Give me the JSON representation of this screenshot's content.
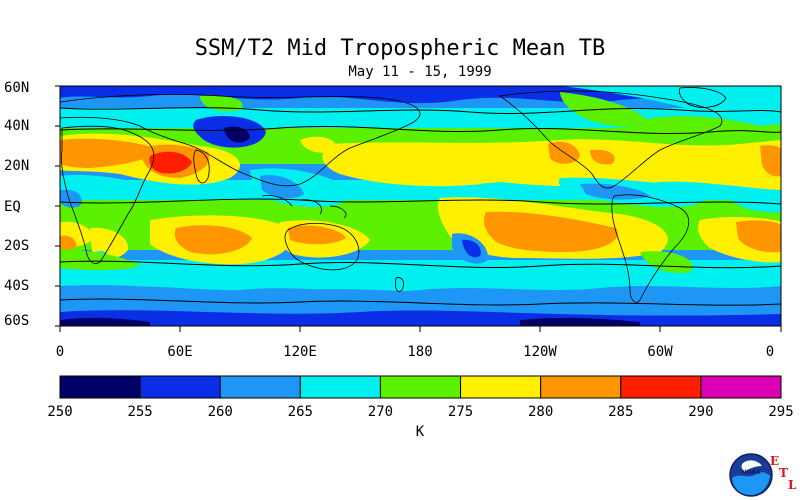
{
  "title": "SSM/T2 Mid Tropospheric Mean TB",
  "subtitle": "May 11 - 15, 1999",
  "lat_labels": [
    "60N",
    "40N",
    "20N",
    "EQ",
    "20S",
    "40S",
    "60S"
  ],
  "lon_labels": [
    "0",
    "60E",
    "120E",
    "180",
    "120W",
    "60W",
    "0"
  ],
  "colorbar": {
    "ticks": [
      "250",
      "255",
      "260",
      "265",
      "270",
      "275",
      "280",
      "285",
      "290",
      "295"
    ],
    "colors": [
      "#000066",
      "#0a2ee6",
      "#1e96f5",
      "#00f0f0",
      "#5af000",
      "#fff000",
      "#ff9600",
      "#ff1e00",
      "#dc00b4"
    ],
    "unit": "K"
  },
  "logo": {
    "name": "NOAA",
    "letters": [
      "E",
      "T",
      "L"
    ]
  },
  "map_bands": [
    {
      "lat": "60N",
      "level_K": 262
    },
    {
      "lat": "40N",
      "level_K": 266
    },
    {
      "lat": "20N",
      "level_K": 275
    },
    {
      "lat": "EQ",
      "level_K": 272
    },
    {
      "lat": "20S",
      "level_K": 277
    },
    {
      "lat": "40S",
      "level_K": 268
    },
    {
      "lat": "60S",
      "level_K": 258
    }
  ]
}
